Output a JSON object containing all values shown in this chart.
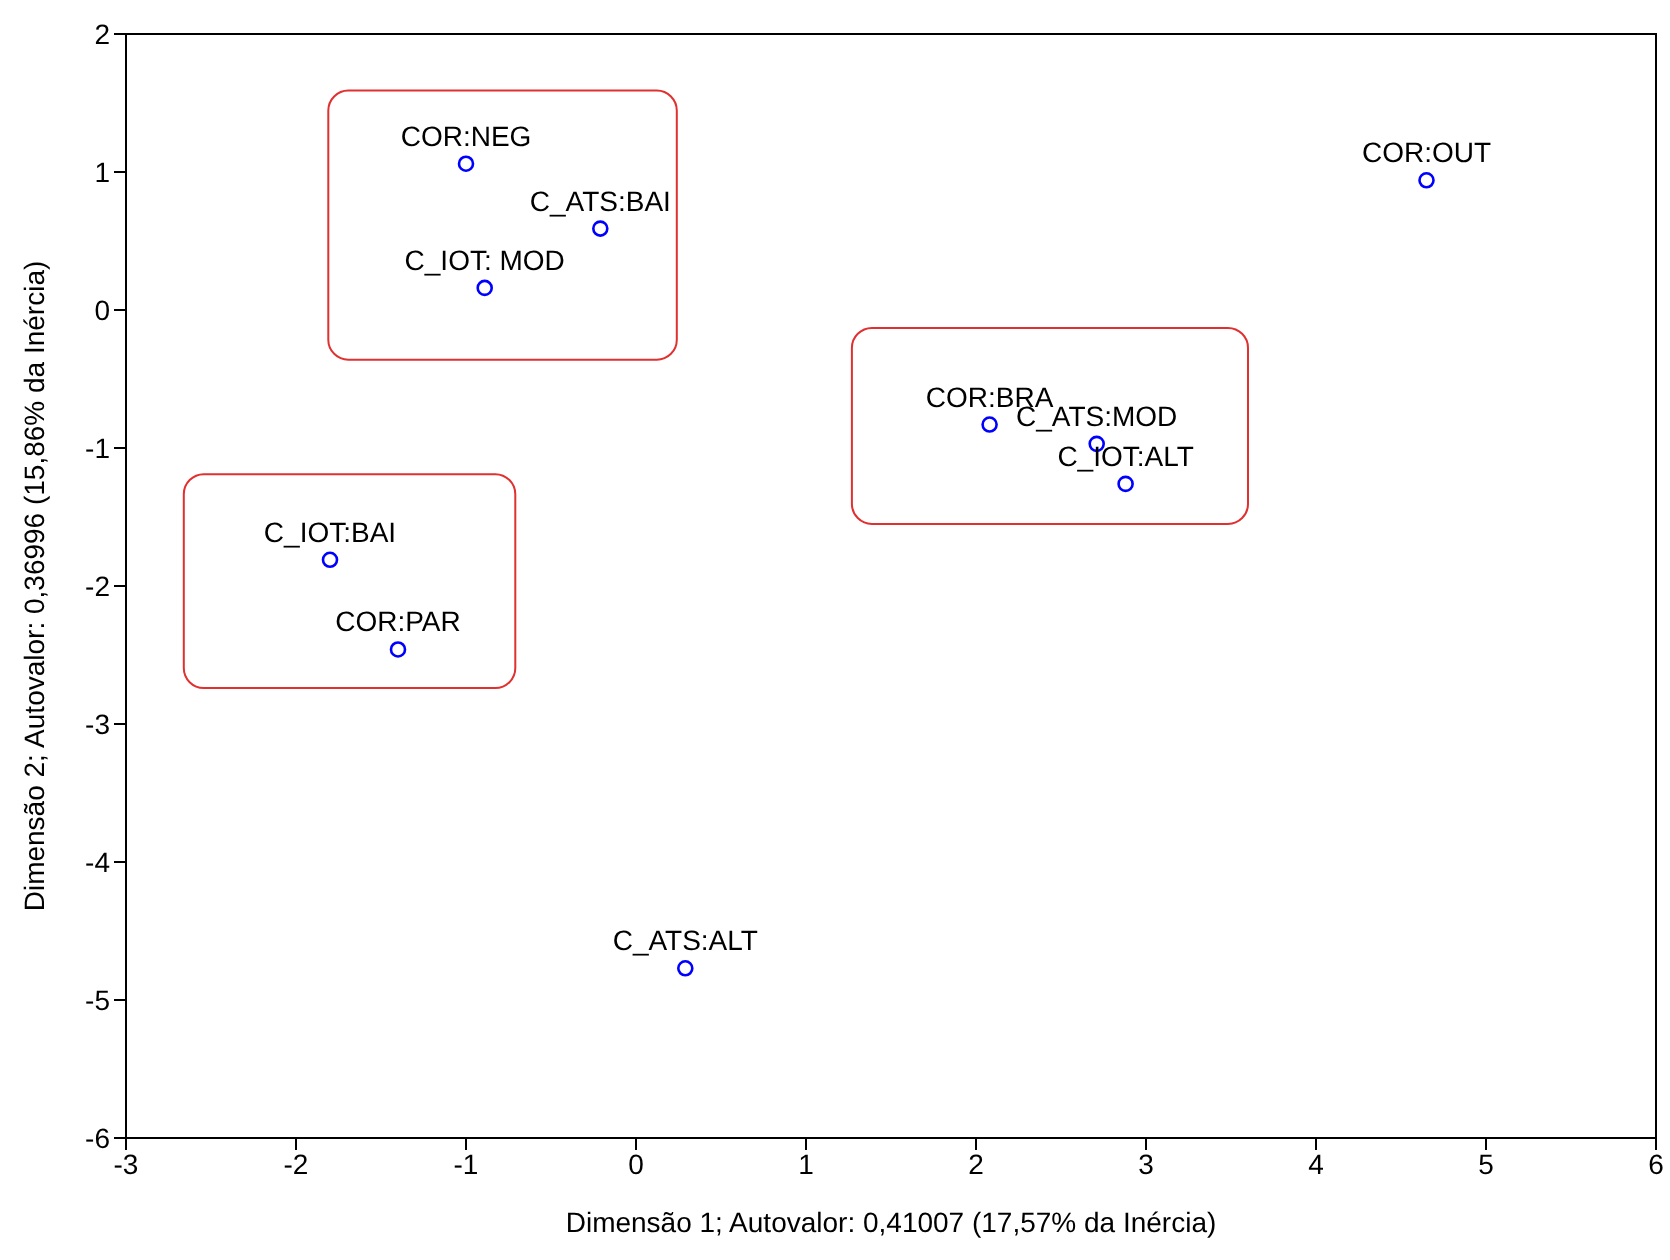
{
  "chart_data": {
    "type": "scatter",
    "xlabel": "Dimensão 1; Autovalor: 0,41007 (17,57% da Inércia)",
    "ylabel": "Dimensão 2; Autovalor: 0,36996 (15,86% da Inércia)",
    "x": [
      -1.0,
      -0.21,
      -0.89,
      4.65,
      2.08,
      2.71,
      2.88,
      -1.8,
      -1.4,
      0.29
    ],
    "values": [
      1.06,
      0.59,
      0.16,
      0.94,
      -0.83,
      -0.97,
      -1.26,
      -1.81,
      -2.46,
      -4.77
    ],
    "color": "#0000ff",
    "marker": "circle",
    "grid": false,
    "xlim": [
      -3,
      6
    ],
    "xticks": [
      -3,
      -2,
      -1,
      0,
      1,
      2,
      3,
      4,
      5,
      6
    ],
    "ylim": [
      -6,
      2
    ],
    "yticks": [
      -6,
      -5,
      -4,
      -3,
      -2,
      -1,
      0,
      1,
      2
    ],
    "annotations": [
      {
        "text": "COR:NEG",
        "x": -1.0,
        "y": 1.06
      },
      {
        "text": "C_ATS:BAI",
        "x": -0.21,
        "y": 0.59
      },
      {
        "text": "C_IOT: MOD",
        "x": -0.89,
        "y": 0.16
      },
      {
        "text": "COR:OUT",
        "x": 4.65,
        "y": 0.94
      },
      {
        "text": "COR:BRA",
        "x": 2.08,
        "y": -0.83
      },
      {
        "text": "C_ATS:MOD",
        "x": 2.71,
        "y": -0.97
      },
      {
        "text": "C_IOT:ALT",
        "x": 2.88,
        "y": -1.26
      },
      {
        "text": "C_IOT:BAI",
        "x": -1.8,
        "y": -1.81
      },
      {
        "text": "COR:PAR",
        "x": -1.4,
        "y": -2.46
      },
      {
        "text": "C_ATS:ALT",
        "x": 0.29,
        "y": -4.77
      }
    ]
  }
}
